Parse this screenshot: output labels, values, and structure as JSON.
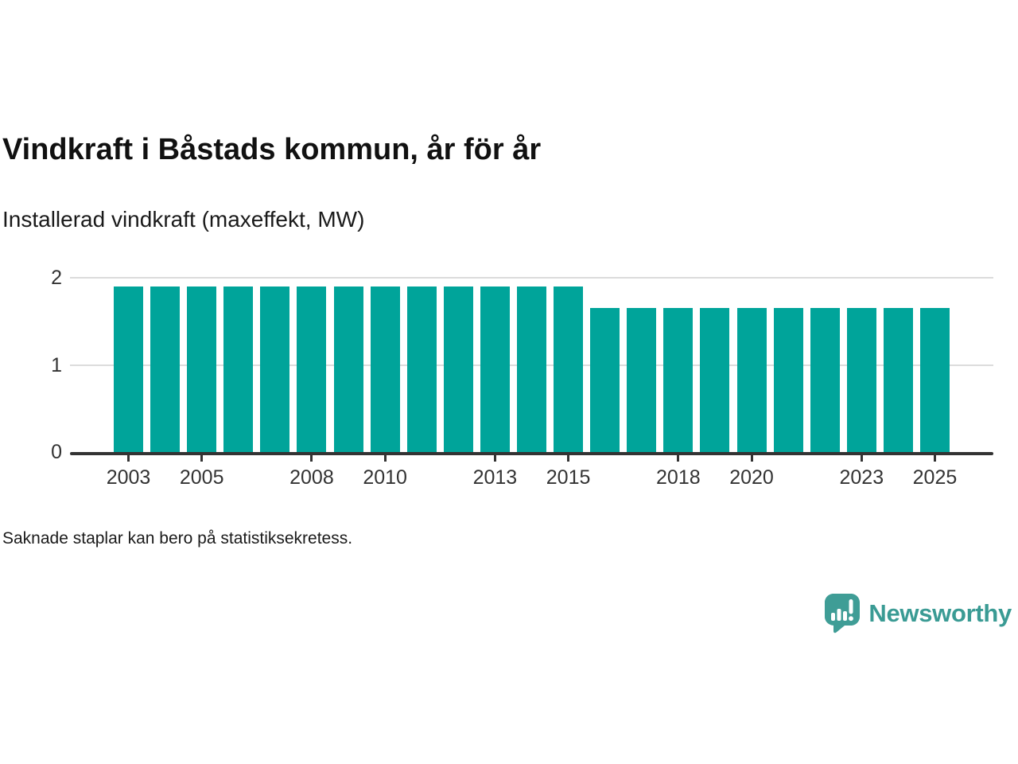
{
  "title": "Vindkraft i Båstads kommun, år för år",
  "subtitle": "Installerad vindkraft (maxeffekt, MW)",
  "footnote": "Saknade staplar kan bero på statistiksekretess.",
  "brand": {
    "name": "Newsworthy",
    "icon": "bar-chart-speech-bubble-icon",
    "color": "#3a9b94",
    "icon_color": "#3f9d96"
  },
  "colors": {
    "bar": "#00a49a",
    "axis": "#333333",
    "grid": "#dcdcdc",
    "text": "#1a1a1a"
  },
  "chart_data": {
    "type": "bar",
    "title": "Vindkraft i Båstads kommun, år för år",
    "subtitle": "Installerad vindkraft (maxeffekt, MW)",
    "unit": "MW",
    "categories": [
      2003,
      2004,
      2005,
      2006,
      2007,
      2008,
      2009,
      2010,
      2011,
      2012,
      2013,
      2014,
      2015,
      2016,
      2017,
      2018,
      2019,
      2020,
      2021,
      2022,
      2023,
      2024,
      2025
    ],
    "values": [
      1.9,
      1.9,
      1.9,
      1.9,
      1.9,
      1.9,
      1.9,
      1.9,
      1.9,
      1.9,
      1.9,
      1.9,
      1.9,
      1.65,
      1.65,
      1.65,
      1.65,
      1.65,
      1.65,
      1.65,
      1.65,
      1.65,
      1.65
    ],
    "xticks": [
      2003,
      2005,
      2008,
      2010,
      2013,
      2015,
      2018,
      2020,
      2023,
      2025
    ],
    "yticks": [
      0,
      1,
      2
    ],
    "ylim": [
      0,
      2.05
    ],
    "grid": "horizontal",
    "legend": "none",
    "xlabel": "",
    "ylabel": ""
  }
}
